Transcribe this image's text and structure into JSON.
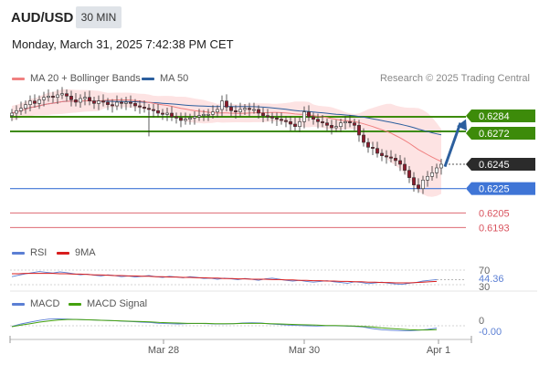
{
  "header": {
    "symbol": "AUD/USD",
    "interval": "30 MIN",
    "datetime": "Monday, March 31, 2025 7:42:38 PM CET"
  },
  "legend": {
    "ma20": "MA 20 + Bollinger Bands",
    "ma50": "MA 50",
    "copyright": "Research © 2025 Trading Central",
    "rsi": "RSI",
    "rsi_ma": "9MA",
    "macd": "MACD",
    "macd_signal": "MACD Signal"
  },
  "colors": {
    "ma20": "#f08080",
    "ma50": "#2c5f9e",
    "bollinger_fill": "#fde3e3",
    "resistance": "#3d8b0a",
    "support": "#3f75d6",
    "target": "#d9535e",
    "up_candle": "#ffffff",
    "down_candle": "#8b1a2b",
    "rsi": "#5b7fd4",
    "rsi_ma": "#d81e1e",
    "macd": "#5b7fd4",
    "macd_signal": "#44a10e",
    "arrow": "#2c5f9e"
  },
  "chart_data": [
    {
      "type": "candlestick",
      "title": "AUD/USD",
      "x_ticks": [
        "Mar 28",
        "Mar 30",
        "Apr 1"
      ],
      "ylim": [
        0.6185,
        0.6305
      ],
      "current_price": 0.6245,
      "levels": [
        {
          "value": 0.6284,
          "label": "0.6284",
          "kind": "resistance"
        },
        {
          "value": 0.6272,
          "label": "0.6272",
          "kind": "resistance"
        },
        {
          "value": 0.6245,
          "label": "0.6245",
          "kind": "current"
        },
        {
          "value": 0.6225,
          "label": "0.6225",
          "kind": "support"
        },
        {
          "value": 0.6205,
          "label": "0.6205",
          "kind": "target"
        },
        {
          "value": 0.6193,
          "label": "0.6193",
          "kind": "target"
        }
      ],
      "forecast_arrow": {
        "from": 0.6243,
        "to": 0.6282
      },
      "closes": [
        0.6287,
        0.6289,
        0.6291,
        0.6294,
        0.6297,
        0.6295,
        0.6298,
        0.63,
        0.6301,
        0.63,
        0.6302,
        0.6303,
        0.6301,
        0.6298,
        0.6296,
        0.6299,
        0.63,
        0.6297,
        0.6295,
        0.6297,
        0.6296,
        0.6294,
        0.6293,
        0.6296,
        0.6295,
        0.6296,
        0.6295,
        0.6293,
        0.6292,
        0.6291,
        0.629,
        0.6289,
        0.6287,
        0.6286,
        0.6287,
        0.6284,
        0.6283,
        0.6281,
        0.6282,
        0.6283,
        0.6284,
        0.6285,
        0.6286,
        0.6286,
        0.6288,
        0.629,
        0.6297,
        0.6292,
        0.6289,
        0.6288,
        0.629,
        0.6291,
        0.629,
        0.629,
        0.6287,
        0.6285,
        0.6284,
        0.6283,
        0.6282,
        0.6281,
        0.628,
        0.6278,
        0.6276,
        0.628,
        0.6288,
        0.6284,
        0.6282,
        0.628,
        0.6279,
        0.6277,
        0.6275,
        0.6276,
        0.6279,
        0.628,
        0.6279,
        0.6277,
        0.6269,
        0.6263,
        0.6259,
        0.6258,
        0.6254,
        0.6252,
        0.6251,
        0.625,
        0.6248,
        0.6245,
        0.624,
        0.6234,
        0.6228,
        0.6225,
        0.6232,
        0.6235,
        0.6238,
        0.6242,
        0.6245
      ]
    },
    {
      "type": "line",
      "title": "RSI",
      "series": [
        {
          "name": "RSI"
        },
        {
          "name": "9MA"
        }
      ],
      "ticks": [
        {
          "value": 70,
          "label": "70"
        },
        {
          "value": 30,
          "label": "30"
        }
      ],
      "current_value_label": "44.36",
      "rsi_values": [
        52,
        56,
        60,
        63,
        66,
        64,
        62,
        65,
        63,
        60,
        57,
        59,
        56,
        54,
        57,
        55,
        52,
        54,
        51,
        53,
        55,
        52,
        50,
        53,
        51,
        49,
        52,
        50,
        47,
        48,
        45,
        48,
        46,
        44,
        47,
        45,
        42,
        46,
        48,
        45,
        42,
        40,
        42,
        39,
        37,
        39,
        41,
        38,
        36,
        34,
        38,
        36,
        33,
        35,
        37,
        34,
        32,
        31,
        34,
        36,
        40,
        42,
        44
      ],
      "rsi_ma_values": [
        60,
        60,
        61,
        61,
        61,
        61,
        61,
        60,
        60,
        59,
        59,
        58,
        57,
        57,
        56,
        55,
        55,
        54,
        54,
        53,
        53,
        52,
        52,
        51,
        51,
        50,
        50,
        49,
        49,
        48,
        48,
        47,
        47,
        46,
        46,
        45,
        45,
        45,
        44,
        44,
        43,
        43,
        42,
        42,
        41,
        41,
        40,
        40,
        39,
        39,
        38,
        38,
        37,
        37,
        36,
        36,
        35,
        35,
        35,
        36,
        37,
        38,
        39
      ]
    },
    {
      "type": "line",
      "title": "MACD",
      "series": [
        {
          "name": "MACD"
        },
        {
          "name": "MACD Signal"
        }
      ],
      "ticks": [
        {
          "value": 0,
          "label": "0"
        }
      ],
      "current_value_label": "-0.00",
      "macd_values": [
        -0.2,
        0.6,
        1.2,
        1.8,
        2.2,
        2.3,
        2.2,
        2.1,
        2.0,
        1.9,
        1.8,
        1.7,
        1.5,
        1.4,
        1.2,
        1.1,
        0.8,
        0.7,
        0.6,
        0.7,
        0.8,
        0.7,
        0.6,
        0.6,
        0.7,
        0.9,
        1.0,
        0.9,
        0.6,
        0.4,
        0.2,
        0.1,
        0.0,
        -0.1,
        0.0,
        0.0,
        -0.1,
        -0.2,
        -0.4,
        -0.9,
        -1.3,
        -1.5,
        -1.6,
        -1.7,
        -1.5,
        -1.2,
        -0.8
      ],
      "macd_signal_values": [
        -0.3,
        0.2,
        0.7,
        1.2,
        1.6,
        1.9,
        2.1,
        2.1,
        2.0,
        1.9,
        1.8,
        1.7,
        1.6,
        1.5,
        1.4,
        1.3,
        1.1,
        1.0,
        0.9,
        0.8,
        0.8,
        0.8,
        0.7,
        0.7,
        0.7,
        0.8,
        0.8,
        0.8,
        0.7,
        0.6,
        0.5,
        0.4,
        0.3,
        0.2,
        0.1,
        0.1,
        0.0,
        -0.1,
        -0.2,
        -0.4,
        -0.7,
        -0.9,
        -1.1,
        -1.3,
        -1.4,
        -1.4,
        -1.3
      ]
    }
  ]
}
